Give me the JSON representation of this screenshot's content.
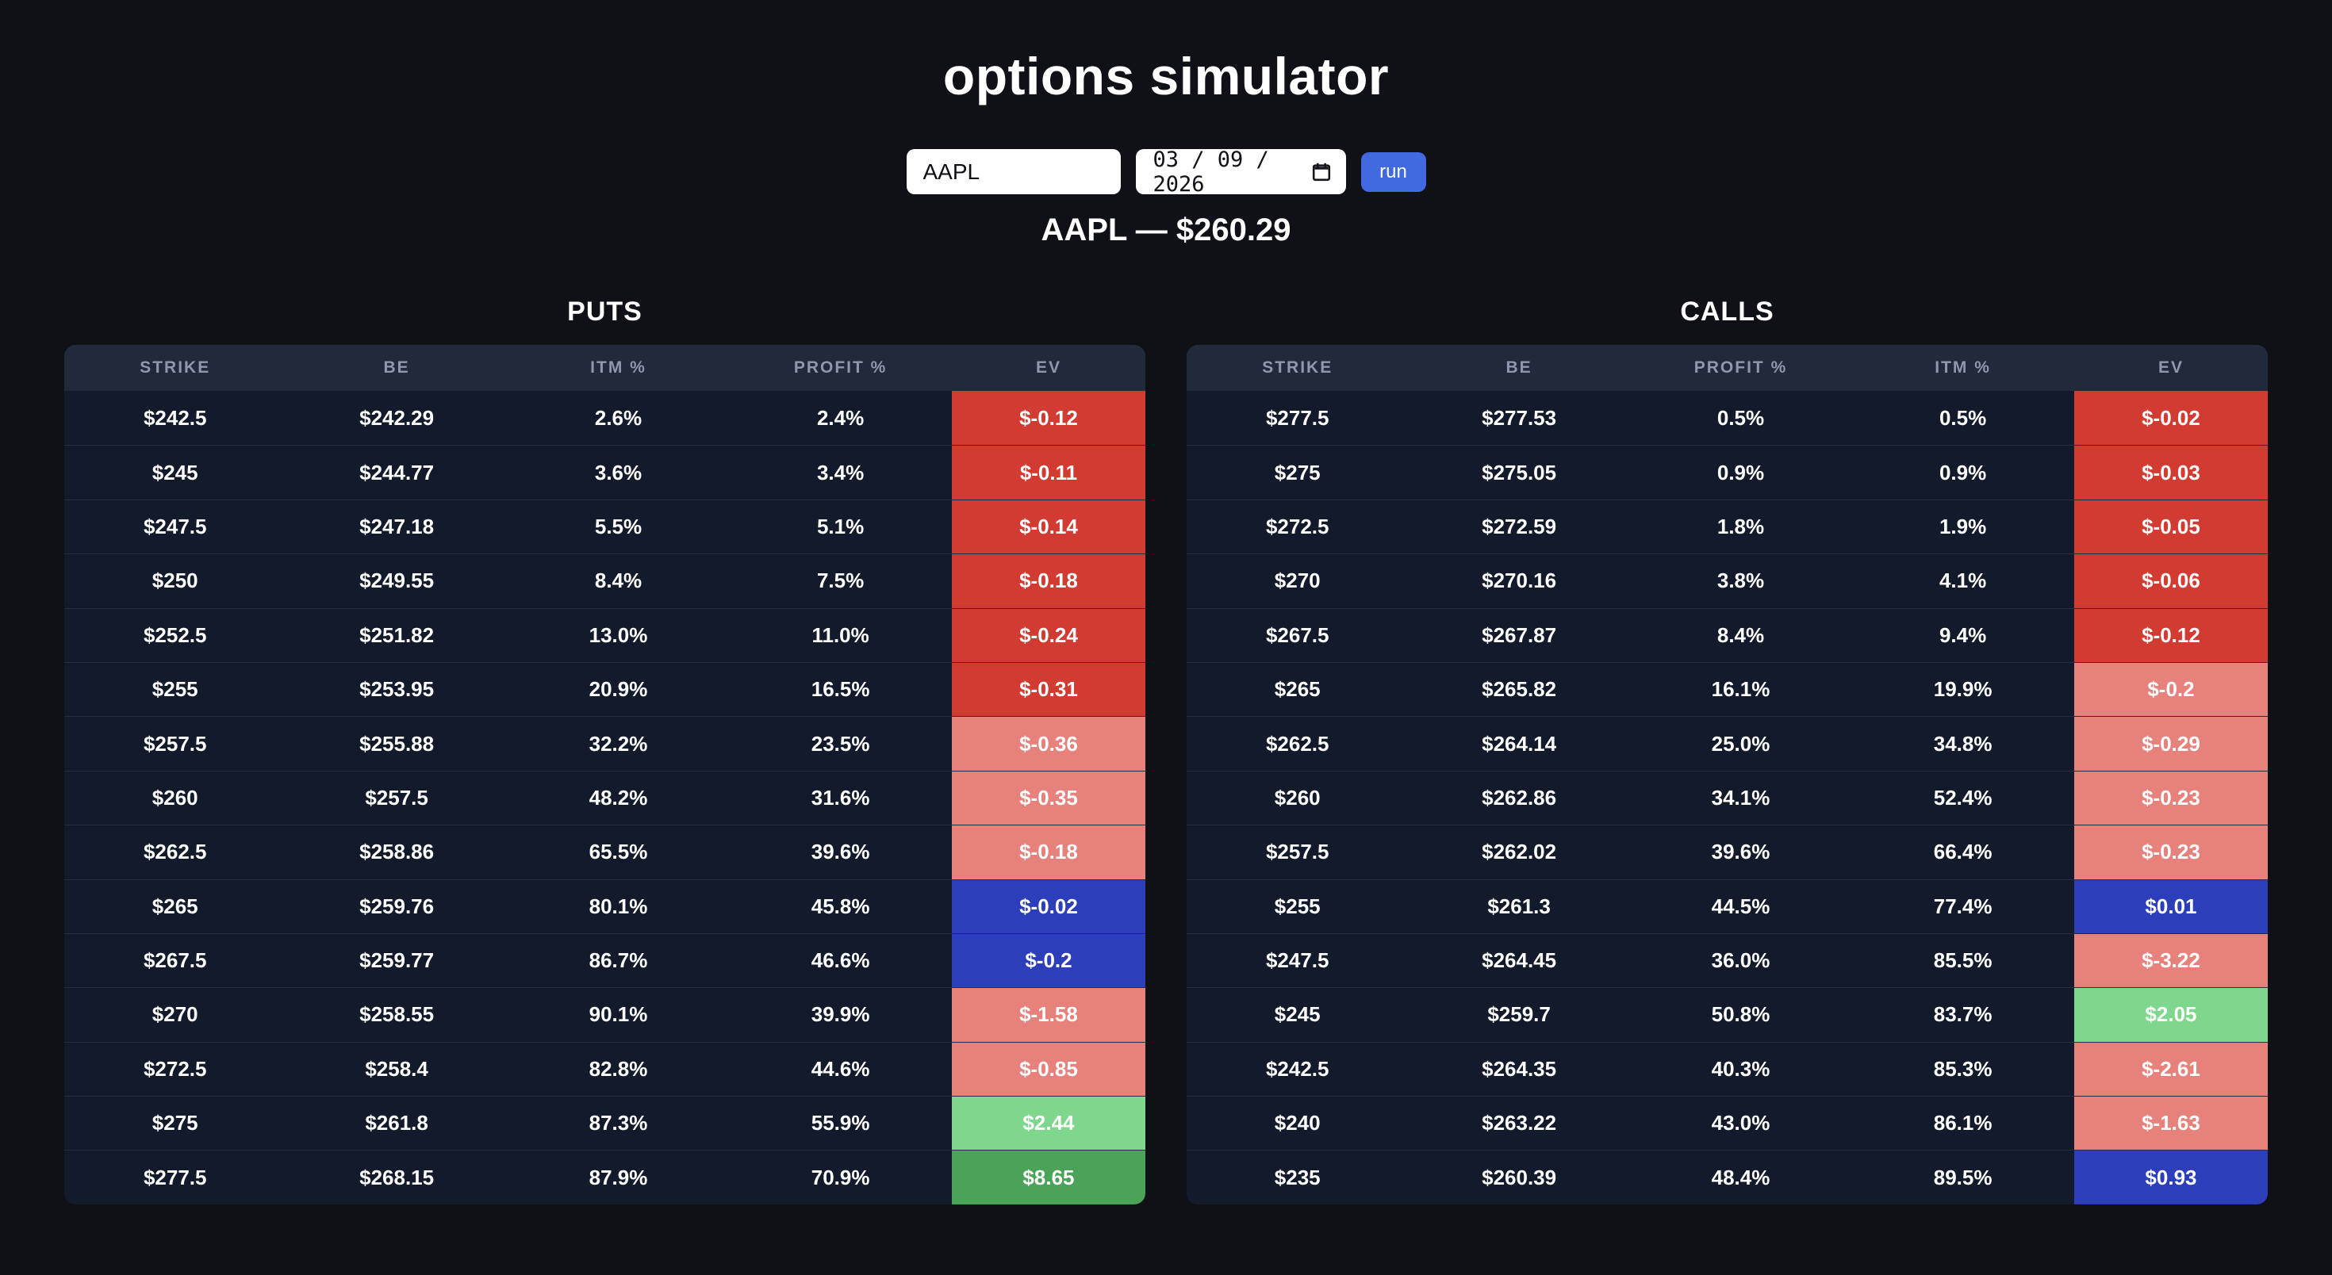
{
  "page": {
    "title": "options simulator",
    "background": "#0f1116"
  },
  "controls": {
    "ticker_value": "AAPL",
    "date_value": "03/09/2026",
    "run_label": "run",
    "run_color": "#4169e0"
  },
  "quote": {
    "text": "AAPL — $260.29"
  },
  "colors": {
    "red": "#d23b31",
    "salmon": "#e6827b",
    "blue": "#2c3eba",
    "green": "#7ed78c",
    "dark_green": "#4ba35a",
    "header_bg": "#212a3b",
    "row_bg": "#121a2b",
    "header_text": "#8e99ad"
  },
  "puts": {
    "title": "PUTS",
    "headers": [
      "STRIKE",
      "BE",
      "ITM %",
      "PROFIT %",
      "EV"
    ],
    "rows": [
      {
        "cells": [
          "$242.5",
          "$242.29",
          "2.6%",
          "2.4%"
        ],
        "ev": "$-0.12",
        "ev_color": "red"
      },
      {
        "cells": [
          "$245",
          "$244.77",
          "3.6%",
          "3.4%"
        ],
        "ev": "$-0.11",
        "ev_color": "red"
      },
      {
        "cells": [
          "$247.5",
          "$247.18",
          "5.5%",
          "5.1%"
        ],
        "ev": "$-0.14",
        "ev_color": "red"
      },
      {
        "cells": [
          "$250",
          "$249.55",
          "8.4%",
          "7.5%"
        ],
        "ev": "$-0.18",
        "ev_color": "red"
      },
      {
        "cells": [
          "$252.5",
          "$251.82",
          "13.0%",
          "11.0%"
        ],
        "ev": "$-0.24",
        "ev_color": "red"
      },
      {
        "cells": [
          "$255",
          "$253.95",
          "20.9%",
          "16.5%"
        ],
        "ev": "$-0.31",
        "ev_color": "red"
      },
      {
        "cells": [
          "$257.5",
          "$255.88",
          "32.2%",
          "23.5%"
        ],
        "ev": "$-0.36",
        "ev_color": "salmon"
      },
      {
        "cells": [
          "$260",
          "$257.5",
          "48.2%",
          "31.6%"
        ],
        "ev": "$-0.35",
        "ev_color": "salmon"
      },
      {
        "cells": [
          "$262.5",
          "$258.86",
          "65.5%",
          "39.6%"
        ],
        "ev": "$-0.18",
        "ev_color": "salmon"
      },
      {
        "cells": [
          "$265",
          "$259.76",
          "80.1%",
          "45.8%"
        ],
        "ev": "$-0.02",
        "ev_color": "blue"
      },
      {
        "cells": [
          "$267.5",
          "$259.77",
          "86.7%",
          "46.6%"
        ],
        "ev": "$-0.2",
        "ev_color": "blue"
      },
      {
        "cells": [
          "$270",
          "$258.55",
          "90.1%",
          "39.9%"
        ],
        "ev": "$-1.58",
        "ev_color": "salmon"
      },
      {
        "cells": [
          "$272.5",
          "$258.4",
          "82.8%",
          "44.6%"
        ],
        "ev": "$-0.85",
        "ev_color": "salmon"
      },
      {
        "cells": [
          "$275",
          "$261.8",
          "87.3%",
          "55.9%"
        ],
        "ev": "$2.44",
        "ev_color": "green"
      },
      {
        "cells": [
          "$277.5",
          "$268.15",
          "87.9%",
          "70.9%"
        ],
        "ev": "$8.65",
        "ev_color": "dark_green"
      }
    ]
  },
  "calls": {
    "title": "CALLS",
    "headers": [
      "STRIKE",
      "BE",
      "PROFIT %",
      "ITM %",
      "EV"
    ],
    "rows": [
      {
        "cells": [
          "$277.5",
          "$277.53",
          "0.5%",
          "0.5%"
        ],
        "ev": "$-0.02",
        "ev_color": "red"
      },
      {
        "cells": [
          "$275",
          "$275.05",
          "0.9%",
          "0.9%"
        ],
        "ev": "$-0.03",
        "ev_color": "red"
      },
      {
        "cells": [
          "$272.5",
          "$272.59",
          "1.8%",
          "1.9%"
        ],
        "ev": "$-0.05",
        "ev_color": "red"
      },
      {
        "cells": [
          "$270",
          "$270.16",
          "3.8%",
          "4.1%"
        ],
        "ev": "$-0.06",
        "ev_color": "red"
      },
      {
        "cells": [
          "$267.5",
          "$267.87",
          "8.4%",
          "9.4%"
        ],
        "ev": "$-0.12",
        "ev_color": "red"
      },
      {
        "cells": [
          "$265",
          "$265.82",
          "16.1%",
          "19.9%"
        ],
        "ev": "$-0.2",
        "ev_color": "salmon"
      },
      {
        "cells": [
          "$262.5",
          "$264.14",
          "25.0%",
          "34.8%"
        ],
        "ev": "$-0.29",
        "ev_color": "salmon"
      },
      {
        "cells": [
          "$260",
          "$262.86",
          "34.1%",
          "52.4%"
        ],
        "ev": "$-0.23",
        "ev_color": "salmon"
      },
      {
        "cells": [
          "$257.5",
          "$262.02",
          "39.6%",
          "66.4%"
        ],
        "ev": "$-0.23",
        "ev_color": "salmon"
      },
      {
        "cells": [
          "$255",
          "$261.3",
          "44.5%",
          "77.4%"
        ],
        "ev": "$0.01",
        "ev_color": "blue"
      },
      {
        "cells": [
          "$247.5",
          "$264.45",
          "36.0%",
          "85.5%"
        ],
        "ev": "$-3.22",
        "ev_color": "salmon"
      },
      {
        "cells": [
          "$245",
          "$259.7",
          "50.8%",
          "83.7%"
        ],
        "ev": "$2.05",
        "ev_color": "green"
      },
      {
        "cells": [
          "$242.5",
          "$264.35",
          "40.3%",
          "85.3%"
        ],
        "ev": "$-2.61",
        "ev_color": "salmon"
      },
      {
        "cells": [
          "$240",
          "$263.22",
          "43.0%",
          "86.1%"
        ],
        "ev": "$-1.63",
        "ev_color": "salmon"
      },
      {
        "cells": [
          "$235",
          "$260.39",
          "48.4%",
          "89.5%"
        ],
        "ev": "$0.93",
        "ev_color": "blue"
      }
    ]
  }
}
